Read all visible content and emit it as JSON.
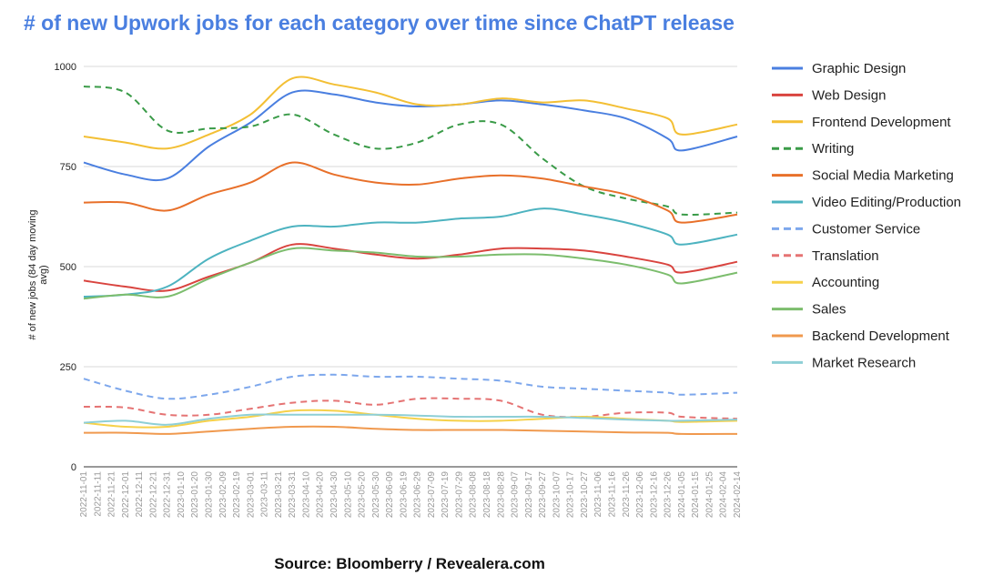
{
  "chart_data": {
    "type": "line",
    "title": "# of new Upwork jobs for each category over time since ChatPT release",
    "ylabel": "# of new jobs (84 day moving avg)",
    "xlabel": "",
    "source": "Source: Bloomberry / Revealera.com",
    "ylim": [
      0,
      1000
    ],
    "yticks": [
      "0",
      "250",
      "500",
      "750",
      "1000"
    ],
    "grid": true,
    "legend_position": "right",
    "x_tick_labels": [
      "2022-11-01",
      "2022-11-11",
      "2022-11-21",
      "2022-12-01",
      "2022-12-11",
      "2022-12-21",
      "2022-12-31",
      "2023-01-10",
      "2023-01-20",
      "2023-01-30",
      "2023-02-09",
      "2023-02-19",
      "2023-03-01",
      "2023-03-11",
      "2023-03-21",
      "2023-03-31",
      "2023-04-10",
      "2023-04-20",
      "2023-04-30",
      "2023-05-10",
      "2023-05-20",
      "2023-05-30",
      "2023-06-09",
      "2023-06-19",
      "2023-06-29",
      "2023-07-09",
      "2023-07-19",
      "2023-07-29",
      "2023-08-08",
      "2023-08-18",
      "2023-08-28",
      "2023-09-07",
      "2023-09-17",
      "2023-09-27",
      "2023-10-07",
      "2023-10-17",
      "2023-10-27",
      "2023-11-06",
      "2023-11-16",
      "2023-11-26",
      "2023-12-06",
      "2023-12-16",
      "2023-12-26",
      "2024-01-05",
      "2024-01-15",
      "2024-01-25",
      "2024-02-04",
      "2024-02-14"
    ],
    "x": [
      "2022-11-01",
      "2022-12-01",
      "2022-12-31",
      "2023-01-30",
      "2023-03-01",
      "2023-03-31",
      "2023-04-30",
      "2023-05-30",
      "2023-06-29",
      "2023-07-29",
      "2023-08-28",
      "2023-09-27",
      "2023-10-27",
      "2023-11-26",
      "2023-12-26",
      "2024-01-05",
      "2024-02-14"
    ],
    "series": [
      {
        "name": "Graphic Design",
        "color": "#4a7fe0",
        "dash": false,
        "values": [
          760,
          730,
          720,
          800,
          860,
          935,
          930,
          910,
          900,
          905,
          915,
          905,
          890,
          870,
          820,
          790,
          825
        ]
      },
      {
        "name": "Web Design",
        "color": "#d9443f",
        "dash": false,
        "values": [
          465,
          450,
          440,
          475,
          510,
          555,
          545,
          530,
          520,
          530,
          545,
          545,
          540,
          525,
          505,
          485,
          512
        ]
      },
      {
        "name": "Frontend Development",
        "color": "#f3bf34",
        "dash": false,
        "values": [
          825,
          810,
          795,
          830,
          880,
          970,
          955,
          935,
          905,
          905,
          920,
          910,
          915,
          895,
          870,
          830,
          855
        ]
      },
      {
        "name": "Writing",
        "color": "#3a9b48",
        "dash": true,
        "values": [
          950,
          935,
          840,
          845,
          850,
          880,
          830,
          795,
          810,
          855,
          855,
          770,
          700,
          670,
          650,
          630,
          635
        ]
      },
      {
        "name": "Social Media Marketing",
        "color": "#e8702a",
        "dash": false,
        "values": [
          660,
          660,
          640,
          680,
          710,
          760,
          730,
          710,
          705,
          720,
          728,
          720,
          700,
          680,
          640,
          610,
          630
        ]
      },
      {
        "name": "Video Editing/Production",
        "color": "#4db3c0",
        "dash": false,
        "values": [
          425,
          430,
          450,
          520,
          565,
          600,
          600,
          610,
          610,
          620,
          625,
          645,
          630,
          610,
          580,
          555,
          580
        ]
      },
      {
        "name": "Customer Service",
        "color": "#7da7ec",
        "dash": true,
        "values": [
          220,
          190,
          170,
          180,
          200,
          225,
          230,
          225,
          225,
          220,
          215,
          200,
          195,
          190,
          185,
          180,
          185
        ]
      },
      {
        "name": "Translation",
        "color": "#e57373",
        "dash": true,
        "values": [
          150,
          148,
          130,
          130,
          145,
          160,
          165,
          155,
          170,
          170,
          165,
          130,
          125,
          135,
          135,
          125,
          120
        ]
      },
      {
        "name": "Accounting",
        "color": "#f6d14a",
        "dash": false,
        "values": [
          110,
          100,
          100,
          115,
          125,
          140,
          140,
          130,
          120,
          115,
          115,
          120,
          125,
          120,
          115,
          112,
          115
        ]
      },
      {
        "name": "Sales",
        "color": "#7cbd6d",
        "dash": false,
        "values": [
          420,
          430,
          425,
          470,
          510,
          545,
          540,
          535,
          525,
          525,
          530,
          530,
          520,
          505,
          480,
          458,
          485
        ]
      },
      {
        "name": "Backend Development",
        "color": "#f0994e",
        "dash": false,
        "values": [
          85,
          85,
          82,
          88,
          95,
          100,
          100,
          95,
          92,
          92,
          92,
          90,
          88,
          86,
          85,
          82,
          82
        ]
      },
      {
        "name": "Market Research",
        "color": "#8ecfd6",
        "dash": false,
        "values": [
          110,
          115,
          105,
          120,
          130,
          130,
          130,
          130,
          128,
          125,
          125,
          125,
          122,
          118,
          115,
          115,
          118
        ]
      }
    ]
  }
}
